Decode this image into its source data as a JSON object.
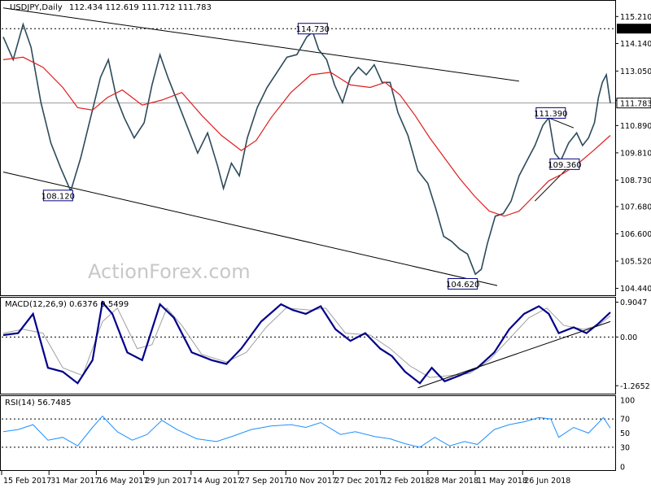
{
  "chart_data": {
    "type": "line",
    "title": "USDJPY,Daily",
    "ohlc_readout": "112.434 112.619 111.712 111.783",
    "watermark": "ActionForex.com",
    "x_tick_labels": [
      "15 Feb 2017",
      "31 Mar 2017",
      "16 May 2017",
      "29 Jun 2017",
      "14 Aug 2017",
      "27 Sep 2017",
      "10 Nov 2017",
      "27 Dec 2017",
      "12 Feb 2018",
      "28 Mar 2018",
      "11 May 2018",
      "26 Jun 2018"
    ],
    "price_panel": {
      "ylim": [
        104.2,
        115.8
      ],
      "y_ticks": [
        "115.210",
        "114.140",
        "113.050",
        "111.890",
        "110.890",
        "109.810",
        "108.730",
        "107.680",
        "106.600",
        "105.520",
        "104.440"
      ],
      "current_price_label": "111.783",
      "current_price": 111.783,
      "resistance_label": "114.730",
      "resistance": 114.73,
      "price_series": [
        {
          "i": 0,
          "v": 114.4
        },
        {
          "i": 10,
          "v": 113.5
        },
        {
          "i": 20,
          "v": 114.9
        },
        {
          "i": 28,
          "v": 114.0
        },
        {
          "i": 38,
          "v": 111.8
        },
        {
          "i": 48,
          "v": 110.2
        },
        {
          "i": 58,
          "v": 109.2
        },
        {
          "i": 68,
          "v": 108.3
        },
        {
          "i": 78,
          "v": 109.6
        },
        {
          "i": 88,
          "v": 111.2
        },
        {
          "i": 98,
          "v": 112.8
        },
        {
          "i": 106,
          "v": 113.5
        },
        {
          "i": 114,
          "v": 112.0
        },
        {
          "i": 122,
          "v": 111.2
        },
        {
          "i": 132,
          "v": 110.4
        },
        {
          "i": 142,
          "v": 111.0
        },
        {
          "i": 150,
          "v": 112.5
        },
        {
          "i": 158,
          "v": 113.7
        },
        {
          "i": 166,
          "v": 112.8
        },
        {
          "i": 176,
          "v": 111.8
        },
        {
          "i": 186,
          "v": 110.8
        },
        {
          "i": 196,
          "v": 109.8
        },
        {
          "i": 206,
          "v": 110.6
        },
        {
          "i": 216,
          "v": 109.3
        },
        {
          "i": 222,
          "v": 108.4
        },
        {
          "i": 230,
          "v": 109.4
        },
        {
          "i": 238,
          "v": 108.9
        },
        {
          "i": 246,
          "v": 110.4
        },
        {
          "i": 256,
          "v": 111.6
        },
        {
          "i": 266,
          "v": 112.4
        },
        {
          "i": 276,
          "v": 113.0
        },
        {
          "i": 286,
          "v": 113.6
        },
        {
          "i": 296,
          "v": 113.7
        },
        {
          "i": 306,
          "v": 114.4
        },
        {
          "i": 312,
          "v": 114.6
        },
        {
          "i": 318,
          "v": 113.9
        },
        {
          "i": 326,
          "v": 113.5
        },
        {
          "i": 334,
          "v": 112.5
        },
        {
          "i": 342,
          "v": 111.8
        },
        {
          "i": 350,
          "v": 112.8
        },
        {
          "i": 358,
          "v": 113.2
        },
        {
          "i": 366,
          "v": 112.9
        },
        {
          "i": 374,
          "v": 113.3
        },
        {
          "i": 382,
          "v": 112.6
        },
        {
          "i": 390,
          "v": 112.6
        },
        {
          "i": 398,
          "v": 111.4
        },
        {
          "i": 408,
          "v": 110.5
        },
        {
          "i": 418,
          "v": 109.1
        },
        {
          "i": 428,
          "v": 108.6
        },
        {
          "i": 436,
          "v": 107.6
        },
        {
          "i": 444,
          "v": 106.5
        },
        {
          "i": 452,
          "v": 106.3
        },
        {
          "i": 460,
          "v": 106.0
        },
        {
          "i": 468,
          "v": 105.8
        },
        {
          "i": 476,
          "v": 105.0
        },
        {
          "i": 482,
          "v": 105.2
        },
        {
          "i": 488,
          "v": 106.2
        },
        {
          "i": 496,
          "v": 107.3
        },
        {
          "i": 504,
          "v": 107.4
        },
        {
          "i": 512,
          "v": 107.9
        },
        {
          "i": 520,
          "v": 108.9
        },
        {
          "i": 528,
          "v": 109.5
        },
        {
          "i": 536,
          "v": 110.1
        },
        {
          "i": 544,
          "v": 110.9
        },
        {
          "i": 550,
          "v": 111.2
        },
        {
          "i": 556,
          "v": 109.8
        },
        {
          "i": 562,
          "v": 109.5
        },
        {
          "i": 570,
          "v": 110.2
        },
        {
          "i": 578,
          "v": 110.6
        },
        {
          "i": 584,
          "v": 110.1
        },
        {
          "i": 590,
          "v": 110.4
        },
        {
          "i": 596,
          "v": 111.0
        },
        {
          "i": 600,
          "v": 112.0
        },
        {
          "i": 604,
          "v": 112.6
        },
        {
          "i": 608,
          "v": 112.9
        },
        {
          "i": 612,
          "v": 111.78
        }
      ],
      "ma_series": [
        {
          "i": 0,
          "v": 113.5
        },
        {
          "i": 20,
          "v": 113.6
        },
        {
          "i": 40,
          "v": 113.2
        },
        {
          "i": 60,
          "v": 112.4
        },
        {
          "i": 75,
          "v": 111.6
        },
        {
          "i": 90,
          "v": 111.5
        },
        {
          "i": 105,
          "v": 112.0
        },
        {
          "i": 120,
          "v": 112.3
        },
        {
          "i": 140,
          "v": 111.7
        },
        {
          "i": 160,
          "v": 111.9
        },
        {
          "i": 180,
          "v": 112.2
        },
        {
          "i": 200,
          "v": 111.3
        },
        {
          "i": 220,
          "v": 110.5
        },
        {
          "i": 240,
          "v": 109.9
        },
        {
          "i": 255,
          "v": 110.3
        },
        {
          "i": 270,
          "v": 111.2
        },
        {
          "i": 290,
          "v": 112.2
        },
        {
          "i": 310,
          "v": 112.9
        },
        {
          "i": 330,
          "v": 113.0
        },
        {
          "i": 350,
          "v": 112.5
        },
        {
          "i": 370,
          "v": 112.4
        },
        {
          "i": 385,
          "v": 112.6
        },
        {
          "i": 400,
          "v": 112.1
        },
        {
          "i": 415,
          "v": 111.3
        },
        {
          "i": 430,
          "v": 110.4
        },
        {
          "i": 445,
          "v": 109.6
        },
        {
          "i": 460,
          "v": 108.8
        },
        {
          "i": 475,
          "v": 108.1
        },
        {
          "i": 490,
          "v": 107.5
        },
        {
          "i": 505,
          "v": 107.3
        },
        {
          "i": 520,
          "v": 107.5
        },
        {
          "i": 535,
          "v": 108.1
        },
        {
          "i": 550,
          "v": 108.7
        },
        {
          "i": 565,
          "v": 109.0
        },
        {
          "i": 580,
          "v": 109.4
        },
        {
          "i": 595,
          "v": 109.9
        },
        {
          "i": 612,
          "v": 110.5
        }
      ],
      "annotations": [
        {
          "label": "114.730",
          "i": 312,
          "v": 114.73
        },
        {
          "label": "108.120",
          "i": 70,
          "v": 108.12
        },
        {
          "label": "104.620",
          "i": 478,
          "v": 104.62
        },
        {
          "label": "111.390",
          "i": 552,
          "v": 111.39
        },
        {
          "label": "109.360",
          "i": 566,
          "v": 109.36
        }
      ]
    },
    "macd_panel": {
      "label": "MACD(12,26,9) 0.6376 0.5499",
      "ylim": [
        -1.45,
        1.0
      ],
      "y_ticks": [
        "0.9047",
        "0.00",
        "-1.2652"
      ],
      "macd_series": [
        {
          "i": 0,
          "v": 0.05
        },
        {
          "i": 15,
          "v": 0.1
        },
        {
          "i": 30,
          "v": 0.6
        },
        {
          "i": 45,
          "v": -0.8
        },
        {
          "i": 60,
          "v": -0.9
        },
        {
          "i": 75,
          "v": -1.2
        },
        {
          "i": 90,
          "v": -0.6
        },
        {
          "i": 100,
          "v": 0.9
        },
        {
          "i": 110,
          "v": 0.6
        },
        {
          "i": 125,
          "v": -0.4
        },
        {
          "i": 140,
          "v": -0.6
        },
        {
          "i": 158,
          "v": 0.85
        },
        {
          "i": 172,
          "v": 0.5
        },
        {
          "i": 190,
          "v": -0.4
        },
        {
          "i": 210,
          "v": -0.6
        },
        {
          "i": 225,
          "v": -0.7
        },
        {
          "i": 240,
          "v": -0.3
        },
        {
          "i": 260,
          "v": 0.4
        },
        {
          "i": 280,
          "v": 0.85
        },
        {
          "i": 292,
          "v": 0.7
        },
        {
          "i": 305,
          "v": 0.6
        },
        {
          "i": 320,
          "v": 0.8
        },
        {
          "i": 335,
          "v": 0.2
        },
        {
          "i": 350,
          "v": -0.1
        },
        {
          "i": 365,
          "v": 0.1
        },
        {
          "i": 380,
          "v": -0.3
        },
        {
          "i": 392,
          "v": -0.5
        },
        {
          "i": 405,
          "v": -0.9
        },
        {
          "i": 420,
          "v": -1.2
        },
        {
          "i": 432,
          "v": -0.8
        },
        {
          "i": 445,
          "v": -1.15
        },
        {
          "i": 460,
          "v": -1.0
        },
        {
          "i": 478,
          "v": -0.8
        },
        {
          "i": 495,
          "v": -0.4
        },
        {
          "i": 510,
          "v": 0.2
        },
        {
          "i": 525,
          "v": 0.6
        },
        {
          "i": 540,
          "v": 0.8
        },
        {
          "i": 550,
          "v": 0.6
        },
        {
          "i": 560,
          "v": 0.1
        },
        {
          "i": 575,
          "v": 0.25
        },
        {
          "i": 588,
          "v": 0.1
        },
        {
          "i": 600,
          "v": 0.35
        },
        {
          "i": 612,
          "v": 0.64
        }
      ],
      "signal_series": [
        {
          "i": 0,
          "v": 0.1
        },
        {
          "i": 20,
          "v": 0.2
        },
        {
          "i": 40,
          "v": 0.1
        },
        {
          "i": 60,
          "v": -0.8
        },
        {
          "i": 80,
          "v": -1.0
        },
        {
          "i": 100,
          "v": 0.4
        },
        {
          "i": 115,
          "v": 0.75
        },
        {
          "i": 135,
          "v": -0.3
        },
        {
          "i": 150,
          "v": -0.2
        },
        {
          "i": 165,
          "v": 0.75
        },
        {
          "i": 180,
          "v": 0.3
        },
        {
          "i": 200,
          "v": -0.45
        },
        {
          "i": 225,
          "v": -0.65
        },
        {
          "i": 245,
          "v": -0.4
        },
        {
          "i": 265,
          "v": 0.25
        },
        {
          "i": 285,
          "v": 0.75
        },
        {
          "i": 310,
          "v": 0.7
        },
        {
          "i": 325,
          "v": 0.75
        },
        {
          "i": 345,
          "v": 0.1
        },
        {
          "i": 370,
          "v": 0.05
        },
        {
          "i": 390,
          "v": -0.3
        },
        {
          "i": 410,
          "v": -0.75
        },
        {
          "i": 430,
          "v": -1.05
        },
        {
          "i": 450,
          "v": -1.0
        },
        {
          "i": 470,
          "v": -0.95
        },
        {
          "i": 490,
          "v": -0.6
        },
        {
          "i": 510,
          "v": -0.05
        },
        {
          "i": 530,
          "v": 0.5
        },
        {
          "i": 548,
          "v": 0.75
        },
        {
          "i": 565,
          "v": 0.3
        },
        {
          "i": 585,
          "v": 0.2
        },
        {
          "i": 600,
          "v": 0.3
        },
        {
          "i": 612,
          "v": 0.55
        }
      ]
    },
    "rsi_panel": {
      "label": "RSI(14) 56.7485",
      "ylim": [
        0,
        100
      ],
      "y_ticks": [
        "100",
        "70",
        "50",
        "30",
        "0"
      ],
      "reference_levels": [
        70,
        30
      ],
      "rsi_series": [
        {
          "i": 0,
          "v": 52
        },
        {
          "i": 15,
          "v": 55
        },
        {
          "i": 30,
          "v": 62
        },
        {
          "i": 45,
          "v": 40
        },
        {
          "i": 60,
          "v": 44
        },
        {
          "i": 75,
          "v": 32
        },
        {
          "i": 90,
          "v": 58
        },
        {
          "i": 100,
          "v": 74
        },
        {
          "i": 115,
          "v": 52
        },
        {
          "i": 130,
          "v": 40
        },
        {
          "i": 145,
          "v": 48
        },
        {
          "i": 160,
          "v": 68
        },
        {
          "i": 175,
          "v": 55
        },
        {
          "i": 195,
          "v": 42
        },
        {
          "i": 215,
          "v": 38
        },
        {
          "i": 230,
          "v": 45
        },
        {
          "i": 250,
          "v": 55
        },
        {
          "i": 270,
          "v": 60
        },
        {
          "i": 290,
          "v": 62
        },
        {
          "i": 305,
          "v": 58
        },
        {
          "i": 320,
          "v": 65
        },
        {
          "i": 340,
          "v": 48
        },
        {
          "i": 355,
          "v": 52
        },
        {
          "i": 375,
          "v": 45
        },
        {
          "i": 390,
          "v": 42
        },
        {
          "i": 405,
          "v": 35
        },
        {
          "i": 420,
          "v": 30
        },
        {
          "i": 435,
          "v": 44
        },
        {
          "i": 450,
          "v": 32
        },
        {
          "i": 465,
          "v": 38
        },
        {
          "i": 478,
          "v": 34
        },
        {
          "i": 495,
          "v": 55
        },
        {
          "i": 510,
          "v": 62
        },
        {
          "i": 525,
          "v": 66
        },
        {
          "i": 540,
          "v": 72
        },
        {
          "i": 552,
          "v": 70
        },
        {
          "i": 560,
          "v": 44
        },
        {
          "i": 575,
          "v": 58
        },
        {
          "i": 590,
          "v": 50
        },
        {
          "i": 605,
          "v": 72
        },
        {
          "i": 612,
          "v": 57
        }
      ]
    },
    "colors": {
      "price": "#2c4a5a",
      "moving_average": "#e01e1e",
      "macd": "#00008b",
      "signal": "#a0a0a0",
      "rsi": "#1e90ff",
      "trendline": "#000000",
      "highlight_box": "#000080",
      "last_price_box": "#000000"
    }
  }
}
